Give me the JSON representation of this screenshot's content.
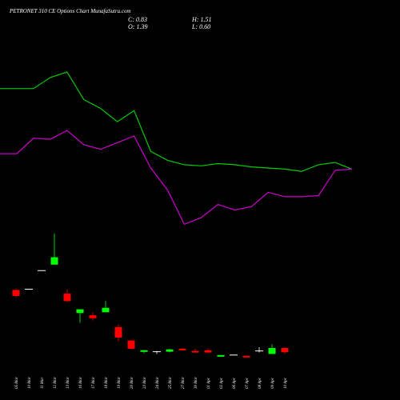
{
  "header": {
    "title": "PETRONET 310 CE Options Chart MunafaSutra.com",
    "close": "C: 0.83",
    "high": "H: 1.51",
    "open": "O: 1.39",
    "low": "L: 0.60"
  },
  "chart_data": {
    "type": "candlestick",
    "title": "PETRONET 310 CE Options Chart MunafaSutra.com",
    "colors": {
      "background": "#000000",
      "up": "#00ff00",
      "down": "#ff0000",
      "flat": "#ffffff",
      "line_upper": "#00cc00",
      "line_lower": "#cc00cc"
    },
    "x": [
      "05 Mar",
      "10 Mar",
      "11 Mar",
      "12 Mar",
      "13 Mar",
      "16 Mar",
      "17 Mar",
      "18 Mar",
      "19 Mar",
      "20 Mar",
      "23 Mar",
      "24 Mar",
      "25 Mar",
      "27 Mar",
      "30 Mar",
      "01 Apr",
      "02 Apr",
      "06 Apr",
      "07 Apr",
      "08 Apr",
      "09 Apr",
      "10 Apr"
    ],
    "candles": [
      {
        "open": 9.2,
        "high": 9.4,
        "low": 8.2,
        "close": 8.4
      },
      {
        "open": 9.3,
        "high": 9.3,
        "low": 9.3,
        "close": 9.3
      },
      {
        "open": 11.8,
        "high": 11.8,
        "low": 11.8,
        "close": 11.8
      },
      {
        "open": 12.6,
        "high": 16.8,
        "low": 12.6,
        "close": 13.6
      },
      {
        "open": 8.7,
        "high": 9.3,
        "low": 7.6,
        "close": 7.7
      },
      {
        "open": 6.1,
        "high": 6.3,
        "low": 4.8,
        "close": 6.6
      },
      {
        "open": 5.8,
        "high": 6.2,
        "low": 5.1,
        "close": 5.4
      },
      {
        "open": 6.2,
        "high": 7.7,
        "low": 6.2,
        "close": 6.8
      },
      {
        "open": 4.2,
        "high": 4.6,
        "low": 2.3,
        "close": 2.8
      },
      {
        "open": 2.4,
        "high": 2.5,
        "low": 1.2,
        "close": 1.3
      },
      {
        "open": 0.9,
        "high": 1.0,
        "low": 0.7,
        "close": 1.1
      },
      {
        "open": 0.9,
        "high": 1.0,
        "low": 0.6,
        "close": 0.9
      },
      {
        "open": 0.9,
        "high": 1.3,
        "low": 0.8,
        "close": 1.2
      },
      {
        "open": 1.3,
        "high": 1.4,
        "low": 1.1,
        "close": 1.2
      },
      {
        "open": 1.0,
        "high": 1.3,
        "low": 0.8,
        "close": 0.9
      },
      {
        "open": 1.1,
        "high": 1.3,
        "low": 0.7,
        "close": 0.8
      },
      {
        "open": 0.4,
        "high": 0.45,
        "low": 0.3,
        "close": 0.45
      },
      {
        "open": 0.45,
        "high": 0.45,
        "low": 0.45,
        "close": 0.45
      },
      {
        "open": 0.35,
        "high": 0.35,
        "low": 0.2,
        "close": 0.25
      },
      {
        "open": 1.0,
        "high": 1.5,
        "low": 0.8,
        "close": 1.0
      },
      {
        "open": 0.6,
        "high": 1.9,
        "low": 0.6,
        "close": 1.4
      },
      {
        "open": 1.39,
        "high": 1.51,
        "low": 0.6,
        "close": 0.83
      }
    ],
    "upper_line": [
      24.3,
      24.3,
      24.3,
      25.3,
      25.8,
      23.3,
      22.5,
      21.3,
      22.3,
      18.6,
      17.8,
      17.4,
      17.3,
      17.5,
      17.4,
      17.2,
      17.1,
      17.0,
      16.8,
      17.4,
      17.6,
      17.0
    ],
    "lower_line": [
      18.4,
      18.4,
      19.8,
      19.7,
      20.5,
      19.2,
      18.8,
      19.4,
      20.0,
      17.1,
      15.1,
      12.0,
      12.6,
      13.8,
      13.3,
      13.6,
      14.9,
      14.5,
      14.5,
      14.6,
      16.9,
      17.0
    ],
    "ylim": [
      0,
      30
    ]
  }
}
